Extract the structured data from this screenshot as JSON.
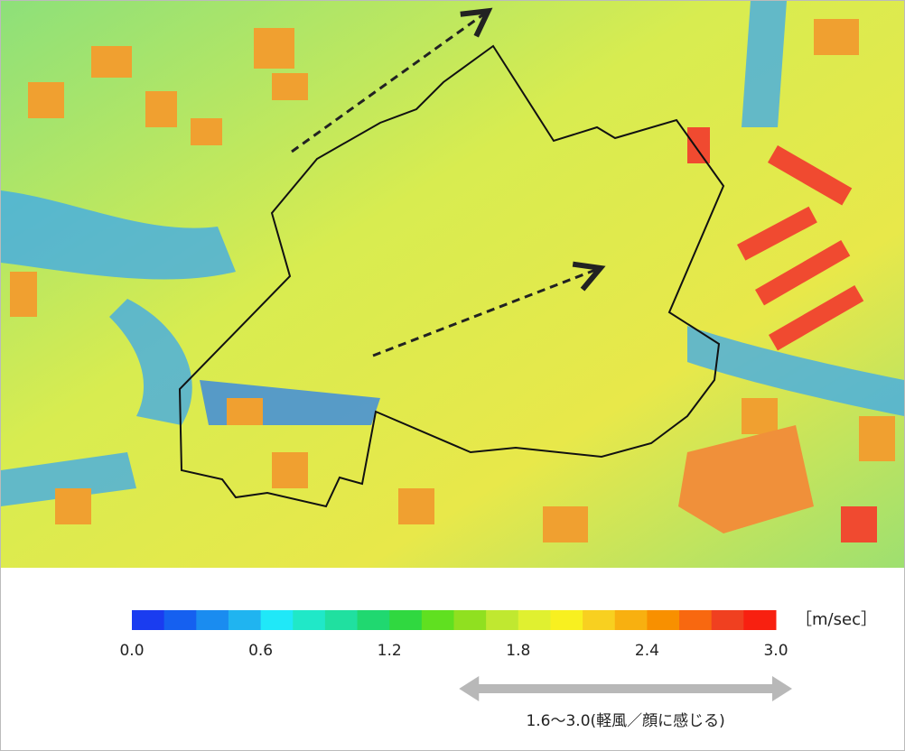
{
  "colorbar": {
    "unit": "［m/sec］",
    "lim": [
      0,
      3.0
    ],
    "ticks": [
      {
        "value": 0,
        "label": "0.0"
      },
      {
        "value": 0.6,
        "label": "0.6"
      },
      {
        "value": 1.2,
        "label": "1.2"
      },
      {
        "value": 1.8,
        "label": "1.8"
      },
      {
        "value": 2.4,
        "label": "2.4"
      },
      {
        "value": 3.0,
        "label": "3.0"
      }
    ],
    "colors": [
      "#1a3cf0",
      "#1560f0",
      "#1a8cf0",
      "#20b4f0",
      "#20e8f8",
      "#20e8c8",
      "#20e0a0",
      "#20d870",
      "#30d840",
      "#60e020",
      "#90e020",
      "#c0e830",
      "#e0f030",
      "#f8f020",
      "#f8d020",
      "#f8b010",
      "#f89000",
      "#f86810",
      "#f04020",
      "#f82010"
    ]
  },
  "annotation": {
    "text": "1.6～3.0(軽風／顔に感じる)",
    "range": [
      1.6,
      3.0
    ]
  }
}
